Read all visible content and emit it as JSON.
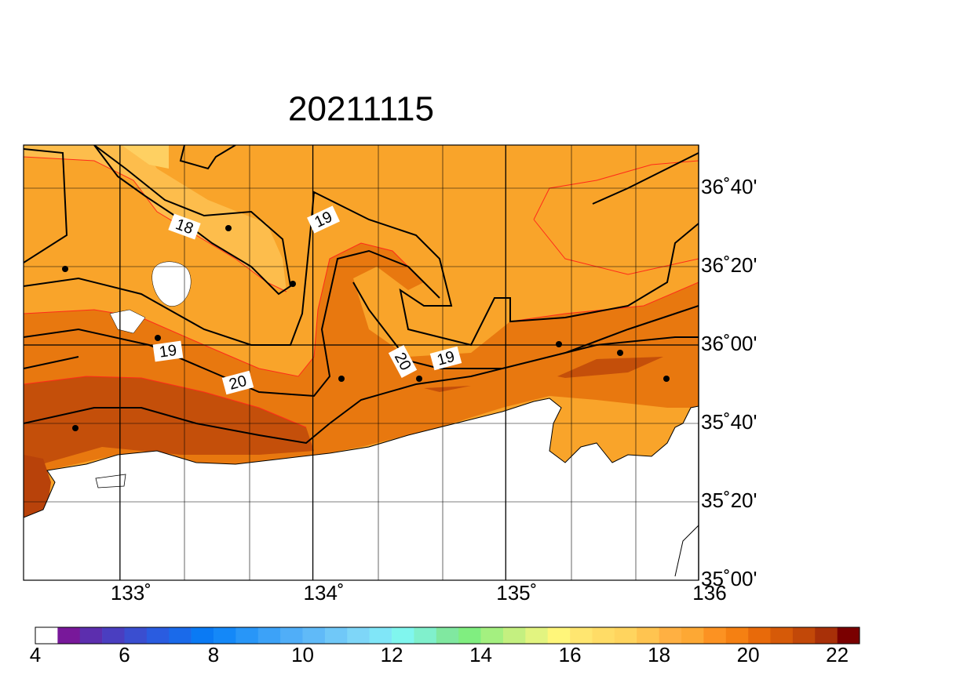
{
  "header": {
    "title": "20211115"
  },
  "map": {
    "lonlim": [
      132.5,
      136
    ],
    "latlim": [
      35,
      36.85
    ],
    "lonticks": [
      {
        "value": 133,
        "label": "133˚"
      },
      {
        "value": 134,
        "label": "134˚"
      },
      {
        "value": 135,
        "label": "135˚"
      },
      {
        "value": 136,
        "label": "136"
      }
    ],
    "latticks": [
      {
        "value": 36.6667,
        "label": "36˚40'"
      },
      {
        "value": 36.3333,
        "label": "36˚20'"
      },
      {
        "value": 36,
        "label": "36˚00'"
      },
      {
        "value": 35.6667,
        "label": "35˚40'"
      },
      {
        "value": 35.3333,
        "label": "35˚20'"
      },
      {
        "value": 35,
        "label": "35˚00'"
      }
    ],
    "contour_labels": [
      18,
      19,
      19,
      20,
      20,
      19
    ]
  },
  "colorbar": {
    "range": [
      4,
      22.5
    ],
    "ticks": [
      4,
      6,
      8,
      10,
      12,
      14,
      16,
      18,
      20,
      22
    ],
    "colors": [
      "#ffffff",
      "#78189a",
      "#5c2eae",
      "#4a3ec0",
      "#3a4ed0",
      "#2a5ce0",
      "#1a6aea",
      "#0a7af4",
      "#1488f8",
      "#2896f8",
      "#3ca2f8",
      "#50aef8",
      "#60baf8",
      "#70c8f8",
      "#7ed6f8",
      "#80e6f8",
      "#80f6ee",
      "#80f0cc",
      "#80e8a0",
      "#80ee80",
      "#a4f080",
      "#c4f080",
      "#e2f480",
      "#fff67a",
      "#ffe670",
      "#ffdc66",
      "#ffd45e",
      "#ffc450",
      "#ffb042",
      "#fda834",
      "#fc9222",
      "#f58012",
      "#e86a0a",
      "#d65a08",
      "#c24808",
      "#a83008",
      "#7a0000"
    ]
  }
}
